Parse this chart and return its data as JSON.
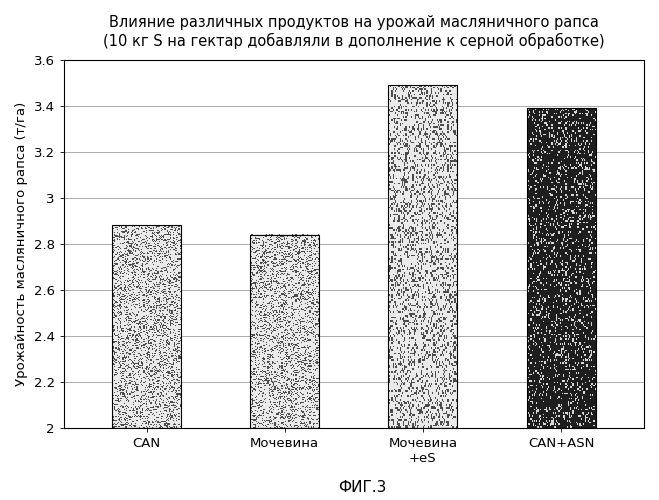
{
  "title_line1": "Влияние различных продуктов на урожай масляничного рапса",
  "title_line2": "(10 кг S на гектар добавляли в дополнение к серной обработке)",
  "categories": [
    "CAN",
    "Мочевина",
    "Мочевина\n+eS",
    "CAN+ASN"
  ],
  "values": [
    2.88,
    2.84,
    3.49,
    3.39
  ],
  "ylabel": "Урожайность масляничного рапса (т/га)",
  "xlabel_bottom": "ФИГ.3",
  "ylim_min": 2.0,
  "ylim_max": 3.6,
  "yticks": [
    2.0,
    2.2,
    2.4,
    2.6,
    2.8,
    3.0,
    3.2,
    3.4,
    3.6
  ],
  "bar_edgecolors": [
    "#000000",
    "#000000",
    "#000000",
    "#000000"
  ],
  "background_color": "#ffffff",
  "title_fontsize": 10.5,
  "ylabel_fontsize": 9.5,
  "tick_fontsize": 9.5,
  "fig_width": 6.59,
  "fig_height": 5.0,
  "dpi": 100,
  "bar_width": 0.5,
  "bar_positions": [
    0,
    1,
    2,
    3
  ],
  "noise_density_light": 0.25,
  "noise_density_dark": 0.85,
  "light_bar_bg": 0.92,
  "dark_bar_bg": 0.15
}
